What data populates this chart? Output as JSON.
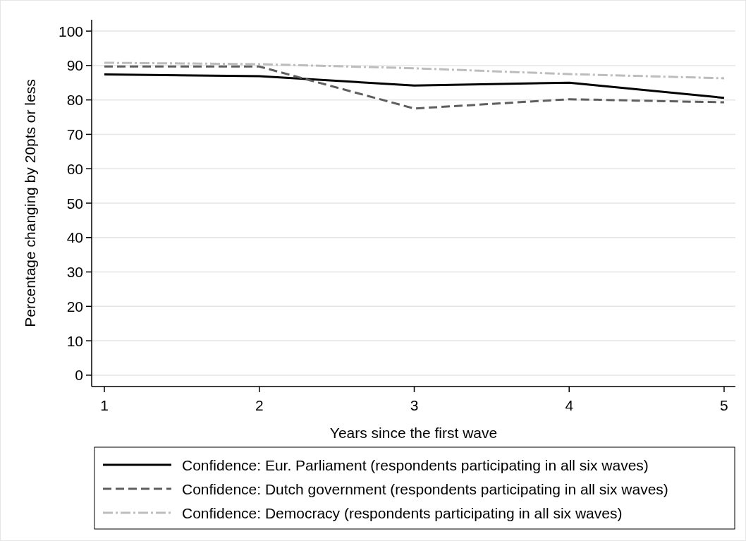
{
  "chart_data": {
    "type": "line",
    "xlabel": "Years since the first wave",
    "ylabel": "Percentage changing by 20pts or less",
    "x": [
      1,
      2,
      3,
      4,
      5
    ],
    "xlim": [
      0.918,
      5.073
    ],
    "xticks": [
      1,
      2,
      3,
      4,
      5
    ],
    "ylim": [
      -3.3,
      103.3
    ],
    "yticks": [
      0,
      10,
      20,
      30,
      40,
      50,
      60,
      70,
      80,
      90,
      100
    ],
    "grid": "y",
    "legend": "bottom",
    "series": [
      {
        "name": "Confidence: Eur. Parliament (respondents participating in all six waves)",
        "color": "#000000",
        "line_style": "solid",
        "values": [
          87.4,
          86.9,
          84.2,
          85.0,
          80.6
        ]
      },
      {
        "name": "Confidence: Dutch government (respondents participating in all six waves)",
        "color": "#5f5f5f",
        "line_style": "dashed",
        "values": [
          89.7,
          89.7,
          77.5,
          80.2,
          79.3
        ]
      },
      {
        "name": "Confidence: Democracy (respondents participating in all six waves)",
        "color": "#bdbdbd",
        "line_style": "dashdot",
        "values": [
          90.8,
          90.4,
          89.2,
          87.5,
          86.3
        ]
      }
    ]
  }
}
